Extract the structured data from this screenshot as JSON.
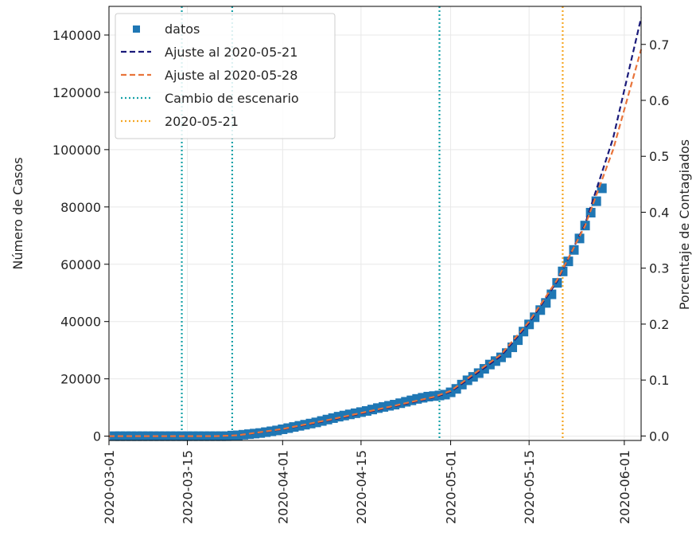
{
  "chart_data": {
    "type": "line",
    "ylabel": "Número de Casos",
    "y2label": "Porcentaje de Contagiados",
    "xlim": [
      "2020-03-01",
      "2020-06-04"
    ],
    "ylim": [
      -1500,
      150000
    ],
    "y2lim": [
      -0.008,
      0.768
    ],
    "grid": true,
    "legend_position": "top-left",
    "x_ticks": [
      "2020-03-01",
      "2020-03-15",
      "2020-04-01",
      "2020-04-15",
      "2020-05-01",
      "2020-05-15",
      "2020-06-01"
    ],
    "y_ticks": [
      0,
      20000,
      40000,
      60000,
      80000,
      100000,
      120000,
      140000
    ],
    "y_tick_labels": [
      "0",
      "20000",
      "40000",
      "60000",
      "80000",
      "100000",
      "120000",
      "140000"
    ],
    "y2_ticks": [
      0.0,
      0.1,
      0.2,
      0.3,
      0.4,
      0.5,
      0.6,
      0.7
    ],
    "y2_tick_labels": [
      "0.0",
      "0.1",
      "0.2",
      "0.3",
      "0.4",
      "0.5",
      "0.6",
      "0.7"
    ],
    "series": [
      {
        "name": "datos",
        "style": "square-marker",
        "color": "#1f77b4",
        "points": [
          [
            "2020-03-02",
            0
          ],
          [
            "2020-03-03",
            0
          ],
          [
            "2020-03-04",
            0
          ],
          [
            "2020-03-05",
            0
          ],
          [
            "2020-03-06",
            0
          ],
          [
            "2020-03-07",
            0
          ],
          [
            "2020-03-08",
            0
          ],
          [
            "2020-03-09",
            0
          ],
          [
            "2020-03-10",
            0
          ],
          [
            "2020-03-11",
            0
          ],
          [
            "2020-03-12",
            0
          ],
          [
            "2020-03-13",
            0
          ],
          [
            "2020-03-14",
            0
          ],
          [
            "2020-03-15",
            0
          ],
          [
            "2020-03-16",
            0
          ],
          [
            "2020-03-17",
            0
          ],
          [
            "2020-03-18",
            0
          ],
          [
            "2020-03-19",
            0
          ],
          [
            "2020-03-20",
            0
          ],
          [
            "2020-03-21",
            0
          ],
          [
            "2020-03-22",
            0
          ],
          [
            "2020-03-23",
            200
          ],
          [
            "2020-03-24",
            300
          ],
          [
            "2020-03-25",
            500
          ],
          [
            "2020-03-26",
            700
          ],
          [
            "2020-03-27",
            900
          ],
          [
            "2020-03-28",
            1100
          ],
          [
            "2020-03-29",
            1400
          ],
          [
            "2020-03-30",
            1700
          ],
          [
            "2020-03-31",
            2000
          ],
          [
            "2020-04-01",
            2400
          ],
          [
            "2020-04-02",
            2800
          ],
          [
            "2020-04-03",
            3200
          ],
          [
            "2020-04-04",
            3600
          ],
          [
            "2020-04-05",
            4000
          ],
          [
            "2020-04-06",
            4400
          ],
          [
            "2020-04-07",
            4800
          ],
          [
            "2020-04-08",
            5300
          ],
          [
            "2020-04-09",
            5800
          ],
          [
            "2020-04-10",
            6300
          ],
          [
            "2020-04-11",
            6800
          ],
          [
            "2020-04-12",
            7200
          ],
          [
            "2020-04-13",
            7600
          ],
          [
            "2020-04-14",
            8000
          ],
          [
            "2020-04-15",
            8400
          ],
          [
            "2020-04-16",
            8800
          ],
          [
            "2020-04-17",
            9300
          ],
          [
            "2020-04-18",
            9800
          ],
          [
            "2020-04-19",
            10200
          ],
          [
            "2020-04-20",
            10600
          ],
          [
            "2020-04-21",
            11000
          ],
          [
            "2020-04-22",
            11500
          ],
          [
            "2020-04-23",
            12000
          ],
          [
            "2020-04-24",
            12500
          ],
          [
            "2020-04-25",
            13000
          ],
          [
            "2020-04-26",
            13400
          ],
          [
            "2020-04-27",
            13800
          ],
          [
            "2020-04-28",
            14000
          ],
          [
            "2020-04-29",
            14200
          ],
          [
            "2020-04-30",
            14500
          ],
          [
            "2020-05-01",
            15300
          ],
          [
            "2020-05-02",
            16500
          ],
          [
            "2020-05-03",
            18000
          ],
          [
            "2020-05-04",
            19500
          ],
          [
            "2020-05-05",
            20700
          ],
          [
            "2020-05-06",
            22000
          ],
          [
            "2020-05-07",
            23500
          ],
          [
            "2020-05-08",
            25000
          ],
          [
            "2020-05-09",
            26200
          ],
          [
            "2020-05-10",
            27500
          ],
          [
            "2020-05-11",
            29000
          ],
          [
            "2020-05-12",
            31000
          ],
          [
            "2020-05-13",
            33500
          ],
          [
            "2020-05-14",
            36500
          ],
          [
            "2020-05-15",
            39000
          ],
          [
            "2020-05-16",
            41500
          ],
          [
            "2020-05-17",
            44000
          ],
          [
            "2020-05-18",
            46500
          ],
          [
            "2020-05-19",
            49500
          ],
          [
            "2020-05-20",
            53500
          ],
          [
            "2020-05-21",
            57500
          ],
          [
            "2020-05-22",
            61000
          ],
          [
            "2020-05-23",
            65000
          ],
          [
            "2020-05-24",
            69000
          ],
          [
            "2020-05-25",
            73500
          ],
          [
            "2020-05-26",
            78000
          ],
          [
            "2020-05-27",
            82000
          ],
          [
            "2020-05-28",
            86500
          ]
        ]
      },
      {
        "name": "Ajuste al 2020-05-21",
        "style": "dashed",
        "color": "#1a1a7a",
        "points": [
          [
            "2020-03-01",
            0
          ],
          [
            "2020-03-10",
            0
          ],
          [
            "2020-03-20",
            0
          ],
          [
            "2020-03-24",
            300
          ],
          [
            "2020-04-01",
            2400
          ],
          [
            "2020-04-10",
            5800
          ],
          [
            "2020-04-20",
            10000
          ],
          [
            "2020-04-28",
            13500
          ],
          [
            "2020-05-01",
            15500
          ],
          [
            "2020-05-05",
            21000
          ],
          [
            "2020-05-10",
            28000
          ],
          [
            "2020-05-15",
            39500
          ],
          [
            "2020-05-20",
            54000
          ],
          [
            "2020-05-25",
            74000
          ],
          [
            "2020-05-30",
            104000
          ],
          [
            "2020-06-04",
            146000
          ]
        ]
      },
      {
        "name": "Ajuste al 2020-05-28",
        "style": "dashed",
        "color": "#e8743b",
        "points": [
          [
            "2020-03-01",
            0
          ],
          [
            "2020-03-10",
            0
          ],
          [
            "2020-03-20",
            0
          ],
          [
            "2020-03-24",
            300
          ],
          [
            "2020-04-01",
            2500
          ],
          [
            "2020-04-10",
            6000
          ],
          [
            "2020-04-20",
            10200
          ],
          [
            "2020-04-28",
            13700
          ],
          [
            "2020-05-01",
            15800
          ],
          [
            "2020-05-05",
            21500
          ],
          [
            "2020-05-10",
            28500
          ],
          [
            "2020-05-15",
            40000
          ],
          [
            "2020-05-20",
            54500
          ],
          [
            "2020-05-25",
            73500
          ],
          [
            "2020-05-30",
            100000
          ],
          [
            "2020-06-04",
            135000
          ]
        ]
      }
    ],
    "vlines": [
      {
        "name": "Cambio de escenario",
        "style": "dotted",
        "color": "#17a2a8",
        "dates": [
          "2020-03-14",
          "2020-03-23",
          "2020-04-29"
        ]
      },
      {
        "name": "2020-05-21",
        "style": "dotted",
        "color": "#f5a623",
        "dates": [
          "2020-05-21"
        ]
      }
    ]
  },
  "colors": {
    "datos": "#1f77b4",
    "ajuste_0521": "#1a1a7a",
    "ajuste_0528": "#e8743b",
    "cambio": "#17a2a8",
    "fecha": "#f5a623",
    "grid": "#e8e8e8"
  }
}
